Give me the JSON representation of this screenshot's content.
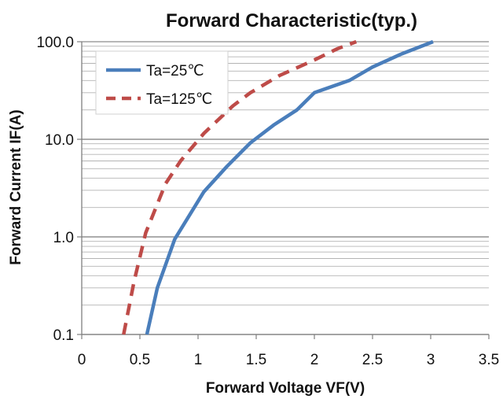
{
  "chart_data": {
    "type": "line",
    "title": "Forward Characteristic(typ.)",
    "xlabel": "Forward Voltage VF(V)",
    "ylabel": "Forward Current IF(A)",
    "xlim": [
      0,
      3.5
    ],
    "ylim": [
      0.1,
      100
    ],
    "yscale": "log",
    "xticks": [
      "0",
      "0.5",
      "1",
      "1.5",
      "2",
      "2.5",
      "3",
      "3.5"
    ],
    "yticks": [
      "0.1",
      "1.0",
      "10.0",
      "100.0"
    ],
    "grid": "horizontal major and minor lines",
    "legend_position": "top-left",
    "series": [
      {
        "name": "Ta=25℃",
        "color": "#4a7ebb",
        "style": "solid",
        "x": [
          0.56,
          0.65,
          0.8,
          1.05,
          1.25,
          1.45,
          1.65,
          1.85,
          2.0,
          2.3,
          2.5,
          2.75,
          3.02
        ],
        "y": [
          0.1,
          0.3,
          0.95,
          2.9,
          5.3,
          9.2,
          14,
          20,
          30,
          40,
          55,
          75,
          100
        ]
      },
      {
        "name": "Ta=125℃",
        "color": "#be4b48",
        "style": "dashed",
        "x": [
          0.36,
          0.45,
          0.55,
          0.72,
          0.85,
          1.05,
          1.3,
          1.45,
          1.7,
          2.0,
          2.2,
          2.36
        ],
        "y": [
          0.1,
          0.35,
          1.1,
          3.5,
          6,
          11.5,
          22,
          30,
          45,
          65,
          85,
          100
        ]
      }
    ]
  }
}
